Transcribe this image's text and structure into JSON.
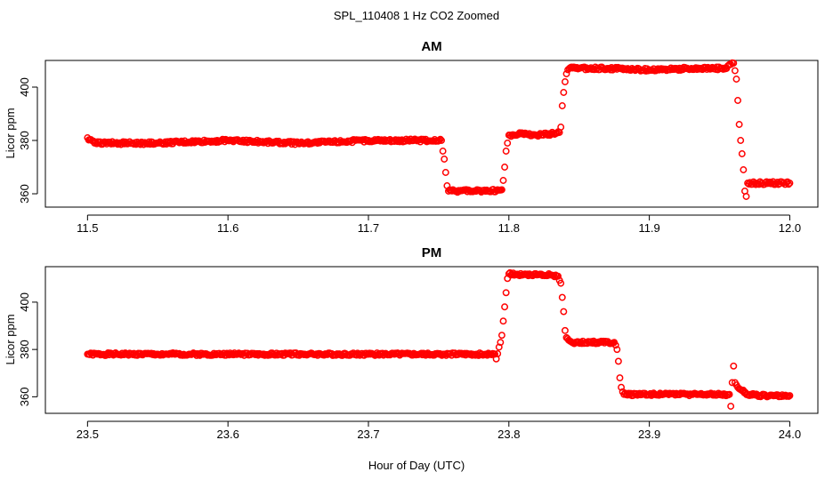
{
  "figure": {
    "suptitle": "SPL_110408  1 Hz CO2 Zoomed",
    "xlabel": "Hour of Day (UTC)",
    "point_color": "#ff0000",
    "marker": "open-circle"
  },
  "chart_data": [
    {
      "type": "scatter",
      "title": "AM",
      "xlabel": "",
      "ylabel": "Licor ppm",
      "xlim": [
        11.47,
        12.02
      ],
      "ylim": [
        355,
        410
      ],
      "xticks": [
        "11.5",
        "11.6",
        "11.7",
        "11.8",
        "11.9",
        "12.0"
      ],
      "yticks": [
        "360",
        "380",
        "400"
      ],
      "grid": false,
      "series": [
        {
          "values": [
            [
              11.5,
              381
            ],
            [
              11.505,
              379
            ],
            [
              11.52,
              379
            ],
            [
              11.55,
              379
            ],
            [
              11.6,
              380
            ],
            [
              11.65,
              379
            ],
            [
              11.7,
              380
            ],
            [
              11.74,
              380
            ],
            [
              11.752,
              380
            ],
            [
              11.753,
              376
            ],
            [
              11.754,
              373
            ],
            [
              11.755,
              368
            ],
            [
              11.756,
              363
            ],
            [
              11.757,
              361
            ],
            [
              11.765,
              361
            ],
            [
              11.775,
              361
            ],
            [
              11.785,
              361
            ],
            [
              11.795,
              361.5
            ],
            [
              11.796,
              365
            ],
            [
              11.797,
              370
            ],
            [
              11.798,
              376
            ],
            [
              11.799,
              379
            ],
            [
              11.8,
              382
            ],
            [
              11.81,
              382.5
            ],
            [
              11.82,
              382
            ],
            [
              11.83,
              382.5
            ],
            [
              11.836,
              383
            ],
            [
              11.837,
              385
            ],
            [
              11.838,
              393
            ],
            [
              11.839,
              398
            ],
            [
              11.84,
              402
            ],
            [
              11.841,
              405
            ],
            [
              11.843,
              407
            ],
            [
              11.85,
              407
            ],
            [
              11.87,
              407
            ],
            [
              11.9,
              406.5
            ],
            [
              11.93,
              407
            ],
            [
              11.955,
              407
            ],
            [
              11.958,
              408.5
            ],
            [
              11.96,
              409
            ],
            [
              11.962,
              403
            ],
            [
              11.963,
              395
            ],
            [
              11.964,
              386
            ],
            [
              11.965,
              380
            ],
            [
              11.966,
              375
            ],
            [
              11.967,
              369
            ],
            [
              11.968,
              361
            ],
            [
              11.969,
              359
            ],
            [
              11.97,
              364
            ],
            [
              11.975,
              364
            ],
            [
              11.985,
              364
            ],
            [
              11.995,
              364
            ],
            [
              12.0,
              364
            ]
          ]
        }
      ]
    },
    {
      "type": "scatter",
      "title": "PM",
      "xlabel": "Hour of Day (UTC)",
      "ylabel": "Licor ppm",
      "xlim": [
        23.47,
        24.02
      ],
      "ylim": [
        353,
        415
      ],
      "xticks": [
        "23.5",
        "23.6",
        "23.7",
        "23.8",
        "23.9",
        "24.0"
      ],
      "yticks": [
        "360",
        "380",
        "400"
      ],
      "grid": false,
      "series": [
        {
          "values": [
            [
              23.5,
              378
            ],
            [
              23.55,
              378
            ],
            [
              23.6,
              378
            ],
            [
              23.65,
              378
            ],
            [
              23.7,
              378
            ],
            [
              23.75,
              378
            ],
            [
              23.78,
              378
            ],
            [
              23.79,
              378
            ],
            [
              23.791,
              376
            ],
            [
              23.793,
              381
            ],
            [
              23.794,
              383
            ],
            [
              23.795,
              386
            ],
            [
              23.796,
              392
            ],
            [
              23.797,
              398
            ],
            [
              23.798,
              404
            ],
            [
              23.799,
              410
            ],
            [
              23.8,
              412
            ],
            [
              23.81,
              411.5
            ],
            [
              23.82,
              411.5
            ],
            [
              23.83,
              411.5
            ],
            [
              23.835,
              411
            ],
            [
              23.837,
              408
            ],
            [
              23.838,
              402
            ],
            [
              23.839,
              396
            ],
            [
              23.84,
              388
            ],
            [
              23.841,
              385
            ],
            [
              23.845,
              383
            ],
            [
              23.855,
              383
            ],
            [
              23.865,
              383
            ],
            [
              23.875,
              383
            ],
            [
              23.877,
              380
            ],
            [
              23.878,
              375
            ],
            [
              23.879,
              368
            ],
            [
              23.88,
              364
            ],
            [
              23.882,
              361
            ],
            [
              23.89,
              361
            ],
            [
              23.91,
              361
            ],
            [
              23.93,
              361
            ],
            [
              23.95,
              361
            ],
            [
              23.957,
              361
            ],
            [
              23.958,
              356
            ],
            [
              23.959,
              366
            ],
            [
              23.96,
              373
            ],
            [
              23.961,
              366
            ],
            [
              23.963,
              364
            ],
            [
              23.97,
              361
            ],
            [
              23.98,
              360.5
            ],
            [
              23.99,
              360.5
            ],
            [
              24.0,
              360.5
            ]
          ]
        }
      ]
    }
  ]
}
